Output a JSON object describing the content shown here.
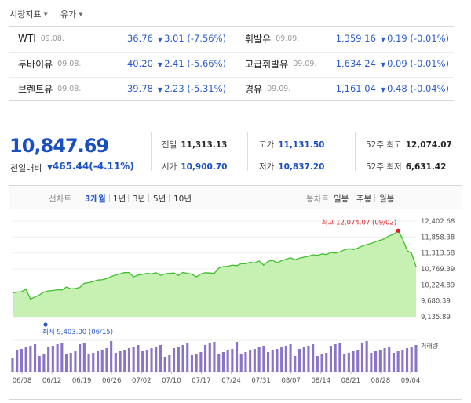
{
  "tabs": [
    {
      "label": "시장지표"
    },
    {
      "label": "유가"
    }
  ],
  "oil": {
    "left": [
      {
        "name": "WTI",
        "date": "09.08.",
        "price": "36.76",
        "change": "3.01",
        "pct": "(-7.56%)"
      },
      {
        "name": "두바이유",
        "date": "09.08.",
        "price": "40.20",
        "change": "2.41",
        "pct": "(-5.66%)"
      },
      {
        "name": "브렌트유",
        "date": "09.08.",
        "price": "39.78",
        "change": "2.23",
        "pct": "(-5.31%)"
      }
    ],
    "right": [
      {
        "name": "휘발유",
        "date": "09.09.",
        "price": "1,359.16",
        "change": "0.19",
        "pct": "(-0.01%)"
      },
      {
        "name": "고급휘발유",
        "date": "09.09.",
        "price": "1,634.24",
        "change": "0.09",
        "pct": "(-0.01%)"
      },
      {
        "name": "경유",
        "date": "09.09.",
        "price": "1,161.04",
        "change": "0.48",
        "pct": "(-0.04%)"
      }
    ],
    "down_symbol": "▼"
  },
  "summary": {
    "price": "10,847.69",
    "change_label": "전일대비",
    "change_value": "465.44",
    "change_pct": "(-4.11%)",
    "prev_label": "전일",
    "prev_value": "11,313.13",
    "open_label": "시가",
    "open_value": "10,900.70",
    "high_label": "고가",
    "high_value": "11,131.50",
    "low_label": "저가",
    "low_value": "10,837.20",
    "w52_high_label": "52주 최고",
    "w52_high_value": "12,074.07",
    "w52_low_label": "52주 최저",
    "w52_low_value": "6,631.42"
  },
  "period_bar": {
    "line_label": "선차트",
    "line_options": [
      "3개월",
      "1년",
      "3년",
      "5년",
      "10년"
    ],
    "line_active": 0,
    "candle_label": "봉차트",
    "candle_options": [
      "일봉",
      "주봉",
      "월봉"
    ]
  },
  "chart_data": {
    "type": "area",
    "yticks": [
      "12,402.68",
      "11,858.38",
      "11,313.58",
      "10,769.39",
      "10,224.89",
      "9,680.39",
      "9,135.89"
    ],
    "ylim": [
      9135.89,
      12402.68
    ],
    "xticks": [
      "06/08",
      "06/12",
      "06/19",
      "06/26",
      "07/02",
      "07/10",
      "07/17",
      "07/24",
      "07/31",
      "08/07",
      "08/14",
      "08/21",
      "08/28",
      "09/04"
    ],
    "values": [
      9950,
      9980,
      9990,
      10080,
      9740,
      9810,
      9880,
      9980,
      10020,
      10030,
      10060,
      10050,
      10150,
      10090,
      10100,
      10140,
      10280,
      10300,
      10340,
      10390,
      10400,
      10440,
      10510,
      10560,
      10600,
      10650,
      10640,
      10500,
      10560,
      10590,
      10620,
      10600,
      10640,
      10550,
      10600,
      10620,
      10630,
      10550,
      10650,
      10620,
      10590,
      10500,
      10600,
      10640,
      10630,
      10620,
      10800,
      10850,
      10860,
      10900,
      10880,
      10950,
      10950,
      11000,
      10970,
      11040,
      10900,
      11030,
      11060,
      10980,
      11050,
      11100,
      11150,
      11080,
      11140,
      11170,
      11200,
      11250,
      11230,
      11280,
      11260,
      11330,
      11310,
      11350,
      11420,
      11460,
      11430,
      11480,
      11550,
      11600,
      11640,
      11700,
      11750,
      11800,
      11900,
      11950,
      12074.07,
      11800,
      11400,
      11300,
      10847.69
    ],
    "volume_label": "거래량",
    "high_annotation": "최고 12,074.07 (09/02)",
    "low_annotation": "최저 9,403.00 (06/15)",
    "colors": {
      "line": "#3fbf2c",
      "fill": "#c6f1b2",
      "volume": "#8a74c6",
      "high_dot": "#e02020",
      "low_dot": "#2a5bc9"
    }
  }
}
